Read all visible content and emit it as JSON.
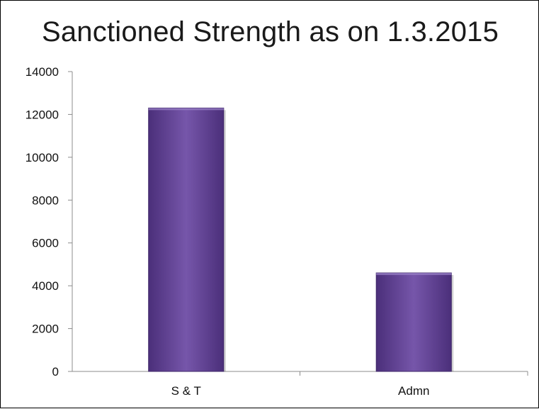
{
  "chart_data": {
    "type": "bar",
    "title": "Sanctioned Strength as on 1.3.2015",
    "xlabel": "",
    "ylabel": "",
    "categories": [
      "S & T",
      "Admn"
    ],
    "values": [
      12300,
      4600
    ],
    "ylim": [
      0,
      14000
    ],
    "yticks": [
      0,
      2000,
      4000,
      6000,
      8000,
      10000,
      12000,
      14000
    ],
    "grid": false,
    "legend": "none",
    "bar_color": "#6a4a9c"
  }
}
